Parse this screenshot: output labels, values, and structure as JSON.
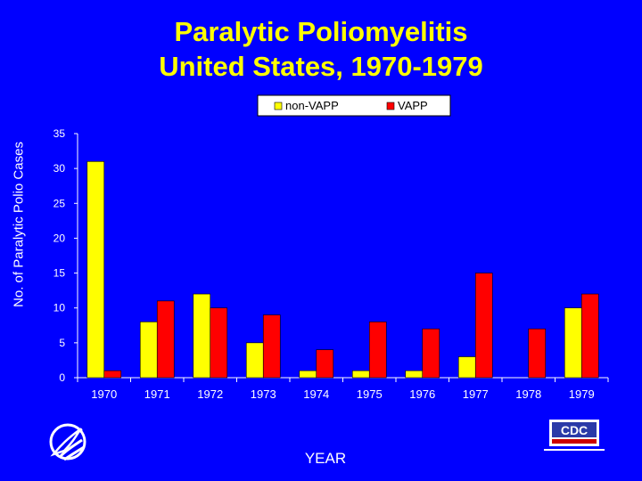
{
  "colors": {
    "background": "#0000ff",
    "title": "#ffff00",
    "non_vapp": "#ffff00",
    "vapp": "#ff0000",
    "axis": "#ffffff",
    "legend_bg": "#ffffff"
  },
  "logos": {
    "left": "hhs-eagle-icon",
    "right": "cdc-logo",
    "right_text": "CDC"
  },
  "chart_data": {
    "type": "bar",
    "title": "Paralytic Poliomyelitis",
    "subtitle": "United States, 1970-1979",
    "xlabel": "YEAR",
    "ylabel": "No. of Paralytic Polio Cases",
    "ylim": [
      0,
      35
    ],
    "yticks": [
      0,
      5,
      10,
      15,
      20,
      25,
      30,
      35
    ],
    "grid": false,
    "legend_position": "top-right",
    "categories": [
      "1970",
      "1971",
      "1972",
      "1973",
      "1974",
      "1975",
      "1976",
      "1977",
      "1978",
      "1979"
    ],
    "series": [
      {
        "name": "non-VAPP",
        "color": "#ffff00",
        "values": [
          31,
          8,
          12,
          5,
          1,
          1,
          1,
          3,
          0,
          10
        ]
      },
      {
        "name": "VAPP",
        "color": "#ff0000",
        "values": [
          1,
          11,
          10,
          9,
          4,
          8,
          7,
          15,
          7,
          12
        ]
      }
    ]
  }
}
